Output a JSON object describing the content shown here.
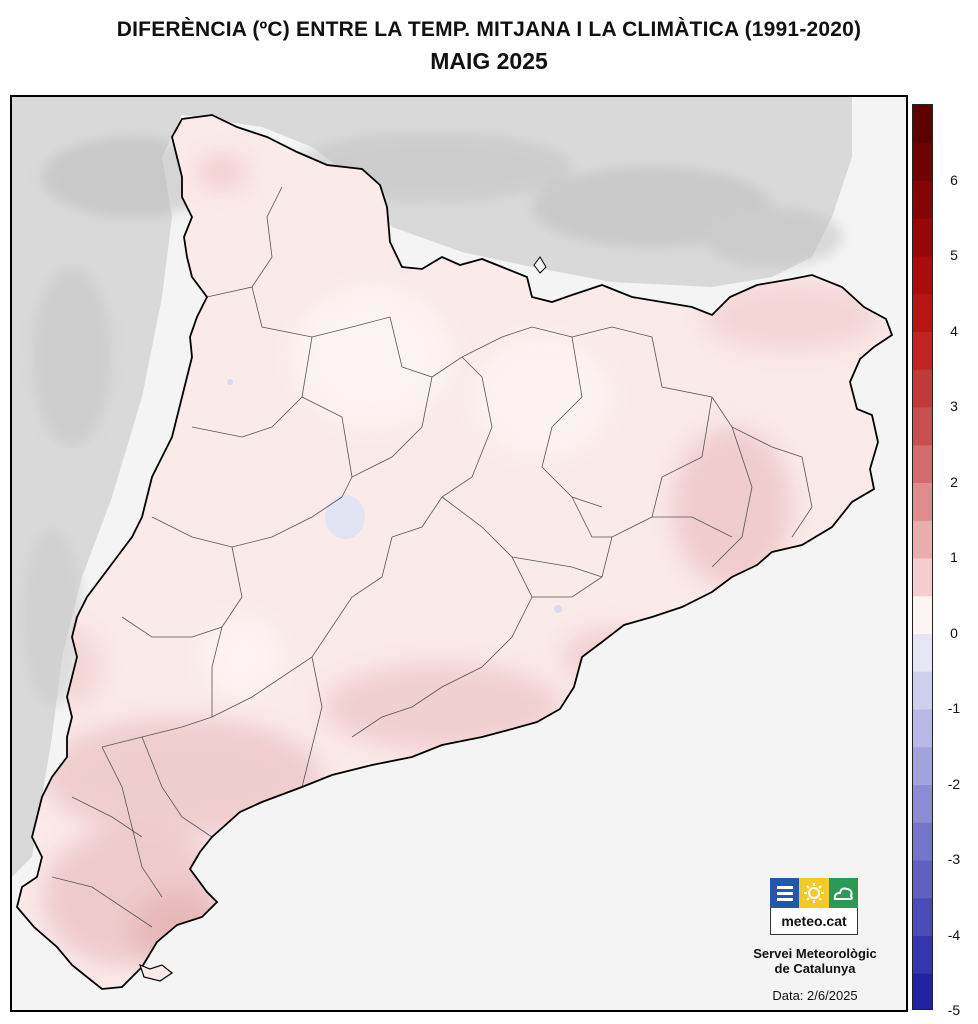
{
  "title_line1": "DIFERÈNCIA (ºC) ENTRE LA TEMP. MITJANA I LA CLIMÀTICA (1991-2020)",
  "title_line2": "MAIG 2025",
  "colorbar": {
    "min": -5,
    "max": 7,
    "step": 0.5,
    "ticks": [
      "6",
      "5",
      "4",
      "3",
      "2",
      "1",
      "0",
      "-1",
      "-2",
      "-3",
      "-4",
      "-5"
    ],
    "colors_warm": [
      "#fde9e9",
      "#f5cfcf",
      "#e9adad",
      "#de8c8c",
      "#d36c6c",
      "#c84f4f",
      "#bf3b3b",
      "#c02424",
      "#b81414",
      "#a90c0c",
      "#960808",
      "#820404",
      "#6f0202",
      "#5e0101"
    ],
    "colors_cool": [
      "#e6e6f5",
      "#cfd0ee",
      "#b8b9e6",
      "#a2a3dd",
      "#8b8cd3",
      "#7576ca",
      "#5f60c0",
      "#4a4bb7",
      "#3536ad",
      "#2022a2",
      "#0d0f97"
    ]
  },
  "map": {
    "region": "Catalunya",
    "background_color": "#f4f4f4",
    "terrain_color": "#d8d8d8",
    "region_fill": "#fbeaea",
    "anomaly_range_shown": [
      -0.5,
      2.0
    ]
  },
  "logo": {
    "word": "meteo.cat",
    "colors": [
      "#1f5aa8",
      "#f6c92a",
      "#2b9a57"
    ]
  },
  "service": {
    "line1": "Servei Meteorològic",
    "line2": "de Catalunya"
  },
  "date_text": "Data: 2/6/2025"
}
